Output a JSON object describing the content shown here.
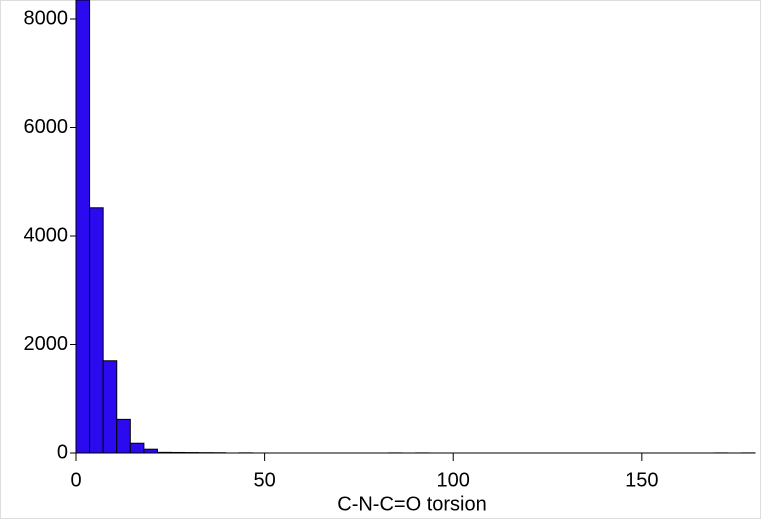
{
  "chart_data": {
    "type": "histogram",
    "xlabel": "C-N-C=O torsion",
    "color": "#2b0af0",
    "bins": [
      0,
      3.6,
      7.2,
      10.8,
      14.4,
      18,
      21.6,
      25.2,
      28.8,
      32.4,
      36,
      39.6,
      43.2,
      46.8,
      50.4,
      54,
      57.6,
      61.2,
      64.8,
      68.4,
      72,
      75.6,
      79.2,
      82.8,
      86.4,
      90,
      93.6,
      97.2,
      100.8,
      104.4,
      108,
      111.6,
      115.2,
      118.8,
      122.4,
      126,
      129.6,
      133.2,
      136.8,
      140.4,
      144,
      147.6,
      151.2,
      154.8,
      158.4,
      162,
      165.6,
      169.2,
      172.8,
      176.4,
      180
    ],
    "values": [
      8350,
      4520,
      1700,
      620,
      180,
      70,
      12,
      10,
      8,
      6,
      5,
      0,
      3,
      0,
      0,
      0,
      0,
      0,
      0,
      0,
      0,
      0,
      0,
      2,
      0,
      2,
      0,
      0,
      0,
      0,
      0,
      0,
      0,
      0,
      0,
      0,
      0,
      0,
      0,
      0,
      0,
      0,
      0,
      0,
      0,
      0,
      0,
      2,
      0,
      2
    ],
    "xlim": [
      0,
      180
    ],
    "ylim": [
      0,
      8350
    ],
    "xticks": [
      0,
      50,
      100,
      150
    ],
    "yticks": [
      0,
      2000,
      4000,
      6000,
      8000
    ]
  }
}
